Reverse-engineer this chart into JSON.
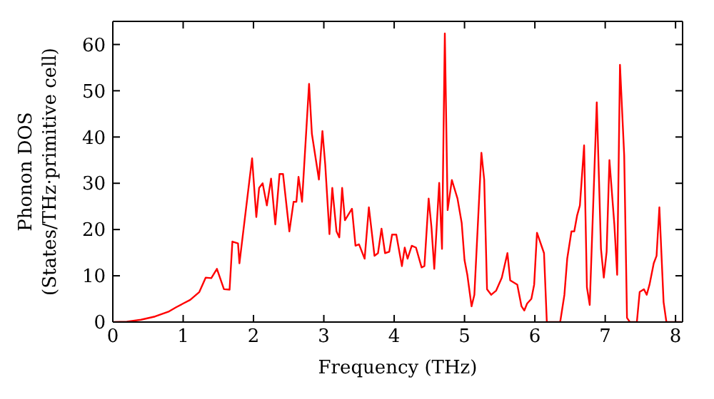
{
  "chart_data": {
    "type": "line",
    "xlabel": "Frequency (THz)",
    "ylabel": "Phonon DOS\n(States/THz·primitive cell)",
    "xlim": [
      0,
      8.1
    ],
    "xticks": [
      0,
      1,
      2,
      3,
      4,
      5,
      6,
      7,
      8
    ],
    "ylim": [
      0,
      65
    ],
    "yticks": [
      0,
      10,
      20,
      30,
      40,
      50,
      60
    ],
    "legend": false,
    "marker": "none",
    "line_style": "solid",
    "x": [
      0,
      0.2,
      0.4,
      0.6,
      0.8,
      0.9,
      1.0,
      1.1,
      1.23,
      1.32,
      1.4,
      1.48,
      1.58,
      1.66,
      1.7,
      1.78,
      1.8,
      1.98,
      2.04,
      2.08,
      2.13,
      2.19,
      2.25,
      2.31,
      2.37,
      2.42,
      2.51,
      2.57,
      2.61,
      2.64,
      2.69,
      2.79,
      2.83,
      2.93,
      2.98,
      3.02,
      3.08,
      3.12,
      3.18,
      3.22,
      3.26,
      3.3,
      3.4,
      3.45,
      3.5,
      3.58,
      3.64,
      3.69,
      3.72,
      3.77,
      3.82,
      3.87,
      3.93,
      3.97,
      4.03,
      4.11,
      4.15,
      4.19,
      4.25,
      4.31,
      4.39,
      4.43,
      4.49,
      4.53,
      4.57,
      4.64,
      4.68,
      4.72,
      4.76,
      4.82,
      4.9,
      4.96,
      5.0,
      5.04,
      5.1,
      5.14,
      5.24,
      5.28,
      5.32,
      5.38,
      5.45,
      5.53,
      5.61,
      5.65,
      5.75,
      5.81,
      5.85,
      5.89,
      5.95,
      5.99,
      6.03,
      6.13,
      6.17,
      6.36,
      6.42,
      6.46,
      6.52,
      6.56,
      6.6,
      6.64,
      6.7,
      6.74,
      6.78,
      6.88,
      6.94,
      6.98,
      7.02,
      7.06,
      7.13,
      7.17,
      7.21,
      7.27,
      7.31,
      7.35,
      7.45,
      7.49,
      7.55,
      7.59,
      7.63,
      7.69,
      7.73,
      7.77,
      7.83,
      7.87,
      8.08
    ],
    "series": [
      {
        "color": "#ff0000",
        "values": [
          0,
          0.1,
          0.5,
          1.2,
          2.3,
          3.2,
          4,
          4.8,
          6.5,
          9.6,
          9.5,
          11.5,
          7.1,
          7,
          17.4,
          17,
          12.7,
          35.4,
          22.7,
          29,
          30,
          25.2,
          31,
          21.1,
          32,
          32,
          19.6,
          26,
          26,
          31.4,
          26,
          51.5,
          40.7,
          30.8,
          41.3,
          34,
          19,
          29,
          19.6,
          18.3,
          29,
          22,
          24.5,
          16.5,
          16.8,
          13.7,
          24.8,
          18.3,
          14.3,
          14.9,
          20.2,
          14.9,
          15.2,
          18.9,
          18.9,
          12.1,
          16.1,
          13.7,
          16.5,
          16.1,
          11.8,
          12.1,
          26.7,
          20.5,
          11.5,
          30.1,
          15.8,
          62.4,
          24.2,
          30.7,
          26.7,
          21.4,
          13.4,
          10.2,
          3.4,
          5.9,
          36.6,
          30.7,
          7.1,
          5.9,
          6.8,
          9.6,
          14.9,
          9,
          8.1,
          3.4,
          2.5,
          4,
          5,
          8.1,
          19.3,
          14.9,
          0,
          0,
          5.9,
          13.7,
          19.6,
          19.6,
          23,
          25.2,
          38.2,
          7.5,
          3.7,
          47.5,
          15.8,
          9.6,
          15.2,
          35,
          21.1,
          10.2,
          55.6,
          36,
          0.9,
          0,
          0,
          6.5,
          7.1,
          5.9,
          8.1,
          12.7,
          14.3,
          24.8,
          4.3,
          0,
          0
        ]
      }
    ]
  }
}
